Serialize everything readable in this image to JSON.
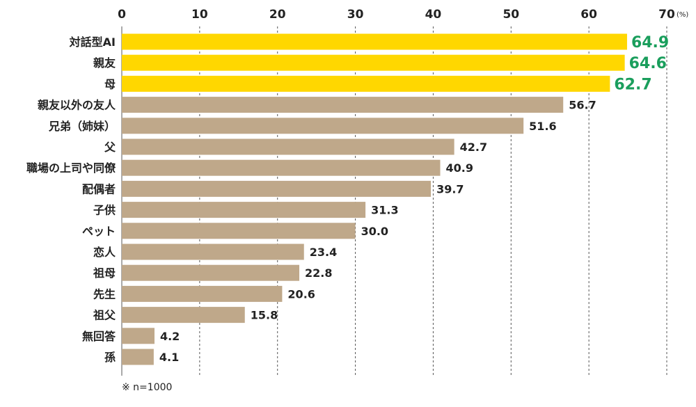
{
  "chart_data": {
    "type": "bar",
    "orientation": "horizontal",
    "title": "",
    "xlabel": "",
    "ylabel": "",
    "unit": "(%)",
    "xlim": [
      0,
      70
    ],
    "x_ticks": [
      0,
      10,
      20,
      30,
      40,
      50,
      60,
      70
    ],
    "x_tick_labels": [
      "0",
      "10",
      "20",
      "30",
      "40",
      "50",
      "60",
      "70"
    ],
    "grid": true,
    "categories": [
      "対話型AI",
      "親友",
      "母",
      "親友以外の友人",
      "兄弟（姉妹）",
      "父",
      "職場の上司や同僚",
      "配偶者",
      "子供",
      "ペット",
      "恋人",
      "祖母",
      "先生",
      "祖父",
      "無回答",
      "孫"
    ],
    "values": [
      64.9,
      64.6,
      62.7,
      56.7,
      51.6,
      42.7,
      40.9,
      39.7,
      31.3,
      30.0,
      23.4,
      22.8,
      20.6,
      15.8,
      4.2,
      4.1
    ],
    "value_labels": [
      "64.9",
      "64.6",
      "62.7",
      "56.7",
      "51.6",
      "42.7",
      "40.9",
      "39.7",
      "31.3",
      "30.0",
      "23.4",
      "22.8",
      "20.6",
      "15.8",
      "4.2",
      "4.1"
    ],
    "highlight_count": 3,
    "colors": {
      "highlight_bar": "#ffd700",
      "bar": "#bfa88a",
      "highlight_value_text": "#1a9e5c",
      "value_text": "#222222"
    },
    "note": "※ n=1000"
  }
}
